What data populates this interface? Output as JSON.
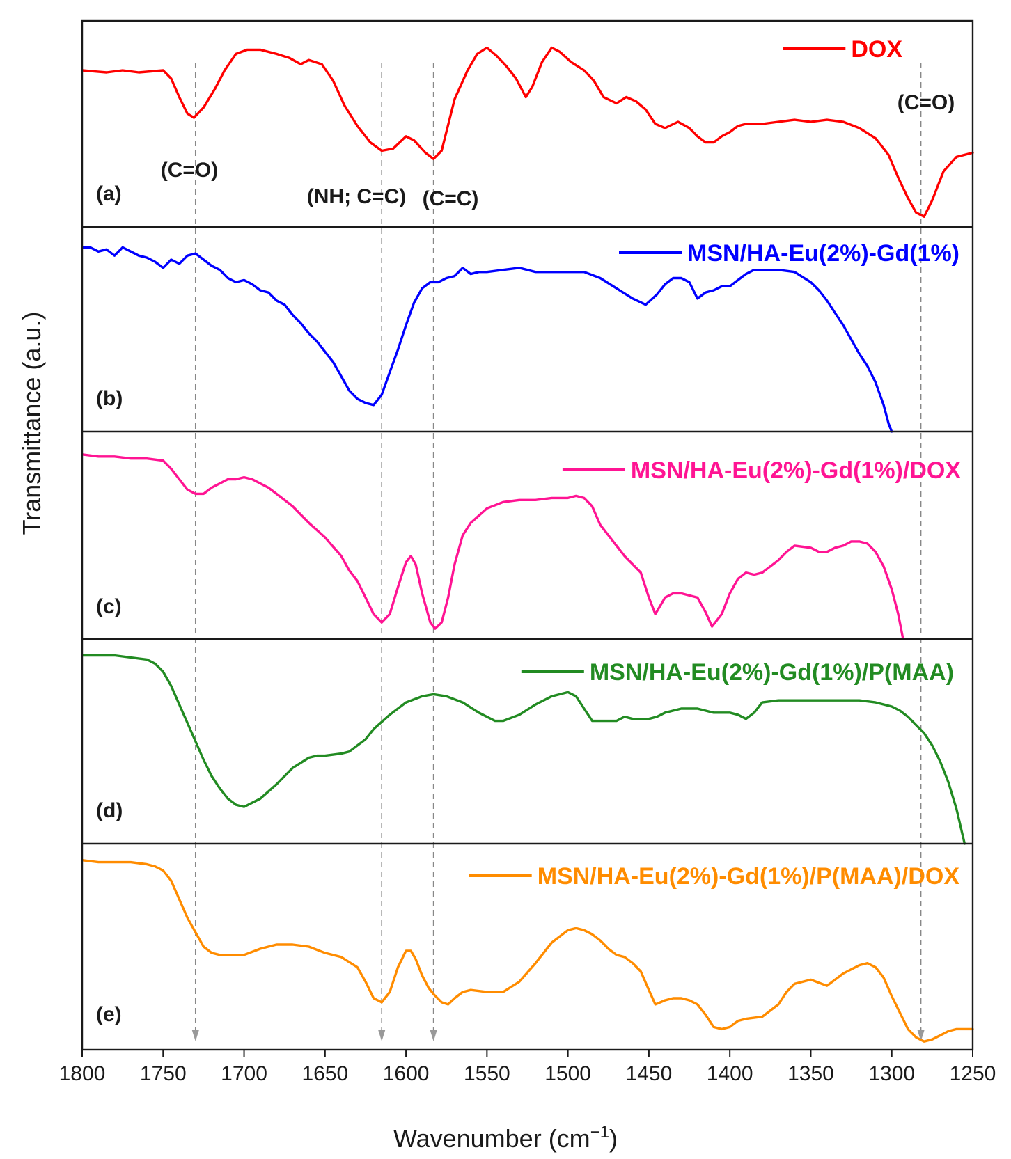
{
  "chart_data": {
    "type": "line",
    "title": "",
    "xlabel": "Wavenumber (cm",
    "xlabel_sup": "−1",
    "xlabel_close": ")",
    "ylabel": "Transmittance (a.u.)",
    "xlim": [
      1800,
      1250
    ],
    "xticks": [
      1800,
      1750,
      1700,
      1650,
      1600,
      1550,
      1500,
      1450,
      1400,
      1350,
      1300,
      1250
    ],
    "reference_lines": [
      1730,
      1615,
      1583,
      1282
    ],
    "series": [
      {
        "name": "DOX",
        "panel": "(a)",
        "color": "#ff0000",
        "x": [
          1800,
          1785,
          1775,
          1765,
          1750,
          1745,
          1740,
          1735,
          1731,
          1725,
          1718,
          1712,
          1705,
          1698,
          1690,
          1680,
          1672,
          1665,
          1660,
          1652,
          1645,
          1638,
          1630,
          1622,
          1615,
          1608,
          1600,
          1595,
          1588,
          1583,
          1578,
          1570,
          1562,
          1556,
          1550,
          1544,
          1538,
          1532,
          1526,
          1522,
          1516,
          1510,
          1505,
          1498,
          1490,
          1484,
          1478,
          1470,
          1464,
          1458,
          1452,
          1446,
          1440,
          1432,
          1425,
          1420,
          1415,
          1410,
          1405,
          1400,
          1395,
          1390,
          1380,
          1370,
          1360,
          1350,
          1340,
          1330,
          1320,
          1310,
          1302,
          1296,
          1290,
          1285,
          1280,
          1275,
          1268,
          1260,
          1250
        ],
        "y": [
          0.76,
          0.75,
          0.76,
          0.75,
          0.76,
          0.72,
          0.63,
          0.55,
          0.53,
          0.58,
          0.67,
          0.76,
          0.84,
          0.86,
          0.86,
          0.84,
          0.82,
          0.79,
          0.81,
          0.79,
          0.71,
          0.59,
          0.49,
          0.41,
          0.37,
          0.38,
          0.44,
          0.42,
          0.36,
          0.33,
          0.37,
          0.62,
          0.76,
          0.84,
          0.87,
          0.83,
          0.78,
          0.72,
          0.63,
          0.68,
          0.8,
          0.87,
          0.85,
          0.8,
          0.76,
          0.71,
          0.63,
          0.6,
          0.63,
          0.61,
          0.57,
          0.5,
          0.48,
          0.51,
          0.48,
          0.44,
          0.41,
          0.41,
          0.44,
          0.46,
          0.49,
          0.5,
          0.5,
          0.51,
          0.52,
          0.51,
          0.52,
          0.51,
          0.48,
          0.43,
          0.35,
          0.24,
          0.14,
          0.07,
          0.05,
          0.13,
          0.27,
          0.34,
          0.36
        ]
      },
      {
        "name": "MSN/HA-Eu(2%)-Gd(1%)",
        "panel": "(b)",
        "color": "#0000ff",
        "x": [
          1800,
          1795,
          1790,
          1785,
          1780,
          1775,
          1770,
          1765,
          1760,
          1755,
          1750,
          1745,
          1740,
          1735,
          1730,
          1725,
          1720,
          1715,
          1710,
          1705,
          1700,
          1695,
          1690,
          1685,
          1680,
          1675,
          1670,
          1665,
          1660,
          1655,
          1650,
          1645,
          1640,
          1635,
          1630,
          1625,
          1620,
          1615,
          1610,
          1605,
          1600,
          1595,
          1590,
          1585,
          1580,
          1575,
          1570,
          1565,
          1560,
          1555,
          1550,
          1540,
          1530,
          1520,
          1510,
          1500,
          1490,
          1480,
          1470,
          1460,
          1452,
          1445,
          1440,
          1435,
          1430,
          1425,
          1420,
          1415,
          1410,
          1405,
          1400,
          1395,
          1390,
          1385,
          1380,
          1370,
          1360,
          1350,
          1345,
          1340,
          1335,
          1330,
          1325,
          1320,
          1315,
          1310,
          1305,
          1302,
          1300
        ],
        "y": [
          0.9,
          0.9,
          0.88,
          0.89,
          0.86,
          0.9,
          0.88,
          0.86,
          0.85,
          0.83,
          0.8,
          0.84,
          0.82,
          0.86,
          0.87,
          0.84,
          0.81,
          0.79,
          0.75,
          0.73,
          0.74,
          0.72,
          0.69,
          0.68,
          0.64,
          0.62,
          0.57,
          0.53,
          0.48,
          0.44,
          0.39,
          0.34,
          0.27,
          0.2,
          0.16,
          0.14,
          0.13,
          0.18,
          0.29,
          0.4,
          0.52,
          0.63,
          0.7,
          0.73,
          0.73,
          0.75,
          0.76,
          0.8,
          0.77,
          0.78,
          0.78,
          0.79,
          0.8,
          0.78,
          0.78,
          0.78,
          0.78,
          0.75,
          0.7,
          0.65,
          0.62,
          0.67,
          0.72,
          0.75,
          0.75,
          0.73,
          0.65,
          0.68,
          0.69,
          0.71,
          0.71,
          0.74,
          0.77,
          0.79,
          0.79,
          0.79,
          0.78,
          0.73,
          0.69,
          0.64,
          0.58,
          0.52,
          0.45,
          0.38,
          0.32,
          0.24,
          0.13,
          0.04,
          0.0
        ]
      },
      {
        "name": "MSN/HA-Eu(2%)-Gd(1%)/DOX",
        "panel": "(c)",
        "color": "#ff1493",
        "x": [
          1800,
          1790,
          1780,
          1770,
          1760,
          1750,
          1745,
          1740,
          1735,
          1730,
          1725,
          1720,
          1715,
          1710,
          1705,
          1700,
          1695,
          1690,
          1685,
          1680,
          1670,
          1660,
          1650,
          1640,
          1635,
          1630,
          1625,
          1620,
          1615,
          1610,
          1605,
          1600,
          1597,
          1594,
          1590,
          1585,
          1582,
          1578,
          1574,
          1570,
          1565,
          1560,
          1550,
          1540,
          1530,
          1520,
          1510,
          1500,
          1495,
          1490,
          1485,
          1480,
          1475,
          1470,
          1465,
          1460,
          1455,
          1450,
          1446,
          1440,
          1435,
          1430,
          1425,
          1420,
          1415,
          1411,
          1405,
          1400,
          1395,
          1390,
          1385,
          1380,
          1375,
          1370,
          1365,
          1360,
          1350,
          1345,
          1340,
          1335,
          1330,
          1325,
          1320,
          1315,
          1310,
          1305,
          1300,
          1296,
          1293
        ],
        "y": [
          0.89,
          0.88,
          0.88,
          0.87,
          0.87,
          0.86,
          0.82,
          0.77,
          0.72,
          0.7,
          0.7,
          0.73,
          0.75,
          0.77,
          0.77,
          0.78,
          0.77,
          0.75,
          0.73,
          0.7,
          0.64,
          0.56,
          0.49,
          0.4,
          0.33,
          0.28,
          0.2,
          0.12,
          0.08,
          0.12,
          0.25,
          0.37,
          0.4,
          0.36,
          0.22,
          0.08,
          0.05,
          0.08,
          0.2,
          0.36,
          0.5,
          0.56,
          0.63,
          0.66,
          0.67,
          0.67,
          0.68,
          0.68,
          0.69,
          0.68,
          0.64,
          0.55,
          0.5,
          0.45,
          0.4,
          0.36,
          0.32,
          0.2,
          0.12,
          0.2,
          0.22,
          0.22,
          0.21,
          0.2,
          0.13,
          0.06,
          0.12,
          0.22,
          0.29,
          0.32,
          0.31,
          0.32,
          0.35,
          0.38,
          0.42,
          0.45,
          0.44,
          0.42,
          0.42,
          0.44,
          0.45,
          0.47,
          0.47,
          0.46,
          0.42,
          0.35,
          0.24,
          0.12,
          0.0
        ]
      },
      {
        "name": "MSN/HA-Eu(2%)-Gd(1%)/P(MAA)",
        "panel": "(d)",
        "color": "#228b22",
        "x": [
          1800,
          1790,
          1780,
          1770,
          1760,
          1755,
          1750,
          1745,
          1740,
          1735,
          1730,
          1725,
          1720,
          1715,
          1710,
          1705,
          1700,
          1695,
          1690,
          1680,
          1670,
          1660,
          1655,
          1650,
          1640,
          1635,
          1630,
          1625,
          1620,
          1610,
          1600,
          1590,
          1583,
          1575,
          1565,
          1555,
          1545,
          1540,
          1530,
          1520,
          1510,
          1505,
          1500,
          1495,
          1490,
          1485,
          1480,
          1470,
          1465,
          1460,
          1450,
          1445,
          1440,
          1430,
          1420,
          1410,
          1400,
          1395,
          1390,
          1385,
          1380,
          1370,
          1360,
          1350,
          1340,
          1330,
          1320,
          1310,
          1300,
          1295,
          1290,
          1285,
          1280,
          1275,
          1270,
          1265,
          1260,
          1255
        ],
        "y": [
          0.92,
          0.92,
          0.92,
          0.91,
          0.9,
          0.88,
          0.84,
          0.77,
          0.68,
          0.59,
          0.5,
          0.41,
          0.33,
          0.27,
          0.22,
          0.19,
          0.18,
          0.2,
          0.22,
          0.29,
          0.37,
          0.42,
          0.43,
          0.43,
          0.44,
          0.45,
          0.48,
          0.51,
          0.56,
          0.63,
          0.69,
          0.72,
          0.73,
          0.72,
          0.69,
          0.64,
          0.6,
          0.6,
          0.63,
          0.68,
          0.72,
          0.73,
          0.74,
          0.72,
          0.66,
          0.6,
          0.6,
          0.6,
          0.62,
          0.61,
          0.61,
          0.62,
          0.64,
          0.66,
          0.66,
          0.64,
          0.64,
          0.63,
          0.61,
          0.64,
          0.69,
          0.7,
          0.7,
          0.7,
          0.7,
          0.7,
          0.7,
          0.69,
          0.67,
          0.65,
          0.62,
          0.58,
          0.54,
          0.48,
          0.4,
          0.3,
          0.17,
          0.0
        ]
      },
      {
        "name": "MSN/HA-Eu(2%)-Gd(1%)/P(MAA)/DOX",
        "panel": "(e)",
        "color": "#ff8c00",
        "x": [
          1800,
          1790,
          1780,
          1770,
          1760,
          1755,
          1750,
          1745,
          1740,
          1735,
          1730,
          1725,
          1720,
          1715,
          1710,
          1700,
          1690,
          1680,
          1670,
          1660,
          1650,
          1640,
          1630,
          1625,
          1620,
          1615,
          1610,
          1605,
          1600,
          1597,
          1594,
          1590,
          1586,
          1583,
          1578,
          1574,
          1570,
          1565,
          1560,
          1550,
          1540,
          1530,
          1520,
          1510,
          1500,
          1495,
          1490,
          1485,
          1480,
          1475,
          1470,
          1465,
          1460,
          1455,
          1450,
          1446,
          1440,
          1435,
          1430,
          1425,
          1420,
          1415,
          1410,
          1405,
          1400,
          1395,
          1390,
          1380,
          1370,
          1365,
          1360,
          1350,
          1340,
          1330,
          1320,
          1315,
          1310,
          1305,
          1300,
          1295,
          1290,
          1285,
          1280,
          1275,
          1270,
          1265,
          1260,
          1250
        ],
        "y": [
          0.92,
          0.91,
          0.91,
          0.91,
          0.9,
          0.89,
          0.87,
          0.82,
          0.73,
          0.64,
          0.57,
          0.5,
          0.47,
          0.46,
          0.46,
          0.46,
          0.49,
          0.51,
          0.51,
          0.5,
          0.47,
          0.45,
          0.4,
          0.33,
          0.25,
          0.23,
          0.28,
          0.4,
          0.48,
          0.48,
          0.44,
          0.36,
          0.3,
          0.27,
          0.23,
          0.22,
          0.25,
          0.28,
          0.29,
          0.28,
          0.28,
          0.33,
          0.42,
          0.52,
          0.58,
          0.59,
          0.58,
          0.56,
          0.53,
          0.49,
          0.46,
          0.45,
          0.42,
          0.38,
          0.29,
          0.22,
          0.24,
          0.25,
          0.25,
          0.24,
          0.22,
          0.17,
          0.11,
          0.1,
          0.11,
          0.14,
          0.15,
          0.16,
          0.22,
          0.28,
          0.32,
          0.34,
          0.31,
          0.37,
          0.41,
          0.42,
          0.4,
          0.35,
          0.26,
          0.18,
          0.1,
          0.06,
          0.04,
          0.05,
          0.07,
          0.09,
          0.1,
          0.1
        ]
      }
    ],
    "annotations": [
      {
        "panel": "(a)",
        "text": "(C=O)",
        "wavenumber": 1730
      },
      {
        "panel": "(a)",
        "text": "(NH; C=C)",
        "wavenumber": 1615
      },
      {
        "panel": "(a)",
        "text": "(C=C)",
        "wavenumber": 1583
      },
      {
        "panel": "(a)",
        "text": "(C=O)",
        "wavenumber": 1282
      }
    ]
  }
}
